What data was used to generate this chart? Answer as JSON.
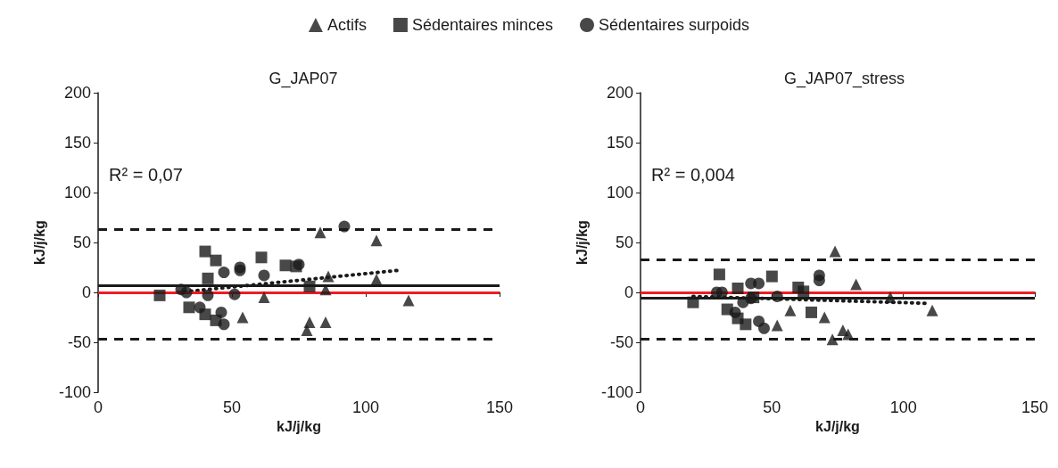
{
  "chart_data": [
    {
      "type": "scatter",
      "title": "G_JAP07",
      "xlabel": "kJ/j/kg",
      "ylabel": "kJ/j/kg",
      "xlim": [
        0,
        150
      ],
      "xticks": [
        0,
        50,
        100,
        150
      ],
      "ylim": [
        -100,
        200
      ],
      "yticks": [
        -100,
        -50,
        0,
        50,
        100,
        150,
        200
      ],
      "grid": false,
      "legend": "top",
      "annotations": [
        "R² = 0,07"
      ],
      "ref_lines": [
        {
          "axis": "y",
          "value": 63,
          "color": "#1a1a1a",
          "line_style": "dashed"
        },
        {
          "axis": "y",
          "value": -47,
          "color": "#1a1a1a",
          "line_style": "dashed"
        },
        {
          "axis": "y",
          "value": 7,
          "color": "#1a1a1a",
          "line_style": "solid"
        },
        {
          "axis": "y",
          "value": 0,
          "color": "#ee1c25",
          "line_style": "solid"
        }
      ],
      "series": [
        {
          "name": "Actifs",
          "color": "#1a1a1a",
          "marker": "triangle",
          "x": [
            83,
            104,
            104,
            86,
            85,
            62,
            54,
            78,
            79,
            85,
            116
          ],
          "values": [
            60,
            52,
            13,
            16,
            3,
            -5,
            -25,
            -38,
            -30,
            -30,
            -8
          ]
        },
        {
          "name": "Sédentaires minces",
          "color": "#1a1a1a",
          "marker": "square",
          "x": [
            23,
            40,
            44,
            41,
            34,
            40,
            44,
            61,
            70,
            74,
            79
          ],
          "values": [
            -3,
            41,
            32,
            14,
            -15,
            -22,
            -28,
            35,
            27,
            26,
            6
          ]
        },
        {
          "name": "Sédentaires surpoids",
          "color": "#1a1a1a",
          "marker": "circle",
          "x": [
            31,
            33,
            47,
            53,
            53,
            38,
            41,
            46,
            47,
            51,
            62,
            75,
            92
          ],
          "values": [
            3,
            0,
            20,
            25,
            22,
            -15,
            -3,
            -20,
            -32,
            -2,
            17,
            28,
            66
          ]
        },
        {
          "type": "line",
          "color": "#1a1a1a",
          "marker": "none",
          "line_style": "dotted",
          "x": [
            30,
            112
          ],
          "values": [
            0,
            22
          ]
        }
      ]
    },
    {
      "type": "scatter",
      "title": "G_JAP07_stress",
      "xlabel": "kJ/j/kg",
      "ylabel": "kJ/j/kg",
      "xlim": [
        0,
        150
      ],
      "xticks": [
        0,
        50,
        100,
        150
      ],
      "ylim": [
        -100,
        200
      ],
      "yticks": [
        -100,
        -50,
        0,
        50,
        100,
        150,
        200
      ],
      "grid": false,
      "annotations": [
        "R² = 0,004"
      ],
      "ref_lines": [
        {
          "axis": "y",
          "value": 33,
          "color": "#1a1a1a",
          "line_style": "dashed"
        },
        {
          "axis": "y",
          "value": -47,
          "color": "#1a1a1a",
          "line_style": "dashed"
        },
        {
          "axis": "y",
          "value": -6,
          "color": "#1a1a1a",
          "line_style": "solid"
        },
        {
          "axis": "y",
          "value": 0,
          "color": "#ee1c25",
          "line_style": "solid"
        }
      ],
      "series": [
        {
          "color": "#1a1a1a",
          "marker": "triangle",
          "x": [
            73,
            74,
            77,
            79,
            82,
            70,
            57,
            52,
            95,
            111
          ],
          "values": [
            -47,
            41,
            -38,
            -42,
            8,
            -25,
            -18,
            -33,
            -5,
            -18
          ]
        },
        {
          "color": "#1a1a1a",
          "marker": "square",
          "x": [
            30,
            20,
            37,
            33,
            37,
            40,
            50,
            43,
            60,
            62,
            65
          ],
          "values": [
            18,
            -10,
            4,
            -17,
            -26,
            -32,
            16,
            -5,
            5,
            1,
            -20
          ]
        },
        {
          "color": "#1a1a1a",
          "marker": "circle",
          "x": [
            29,
            31,
            39,
            42,
            45,
            45,
            47,
            52,
            68,
            68,
            36,
            42
          ],
          "values": [
            0,
            0,
            -10,
            9,
            9,
            -29,
            -36,
            -4,
            12,
            17,
            -20,
            -6
          ]
        },
        {
          "type": "line",
          "color": "#1a1a1a",
          "marker": "none",
          "line_style": "dotted",
          "x": [
            20,
            110
          ],
          "values": [
            -4,
            -11
          ]
        }
      ]
    }
  ]
}
